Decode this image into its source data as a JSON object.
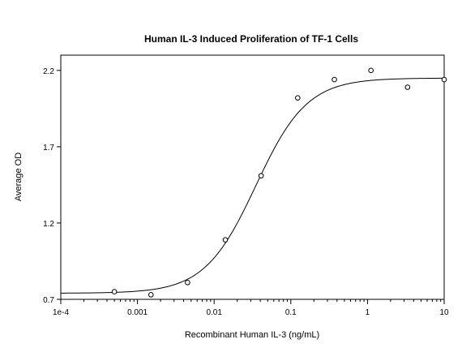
{
  "chart_data": {
    "type": "scatter",
    "title": "Human IL-3 Induced Proliferation of TF-1 Cells",
    "xlabel": "Recombinant Human IL-3 (ng/mL)",
    "ylabel": "Average OD",
    "x_scale": "log",
    "xlim": [
      0.0001,
      10
    ],
    "ylim": [
      0.7,
      2.3
    ],
    "x_ticks": [
      {
        "value": 0.0001,
        "label": "1e-4"
      },
      {
        "value": 0.001,
        "label": "0.001"
      },
      {
        "value": 0.01,
        "label": "0.01"
      },
      {
        "value": 0.1,
        "label": "0.1"
      },
      {
        "value": 1,
        "label": "1"
      },
      {
        "value": 10,
        "label": "10"
      }
    ],
    "y_ticks": [
      {
        "value": 0.7,
        "label": "0.7"
      },
      {
        "value": 1.2,
        "label": "1.2"
      },
      {
        "value": 1.7,
        "label": "1.7"
      },
      {
        "value": 2.2,
        "label": "2.2"
      }
    ],
    "grid": false,
    "series": [
      {
        "kind": "points",
        "marker": "open-circle",
        "x": [
          0.0005,
          0.0015,
          0.0045,
          0.014,
          0.041,
          0.123,
          0.37,
          1.11,
          3.33,
          10
        ],
        "y": [
          0.75,
          0.73,
          0.81,
          1.09,
          1.51,
          2.02,
          2.14,
          2.2,
          2.09,
          2.14
        ]
      },
      {
        "kind": "fitted-curve",
        "model": "4PL",
        "bottom": 0.74,
        "top": 2.15,
        "ec50": 0.035,
        "hill": 1.3
      }
    ],
    "colors": {
      "line": "#000000",
      "marker_stroke": "#000000",
      "background": "#ffffff"
    }
  }
}
